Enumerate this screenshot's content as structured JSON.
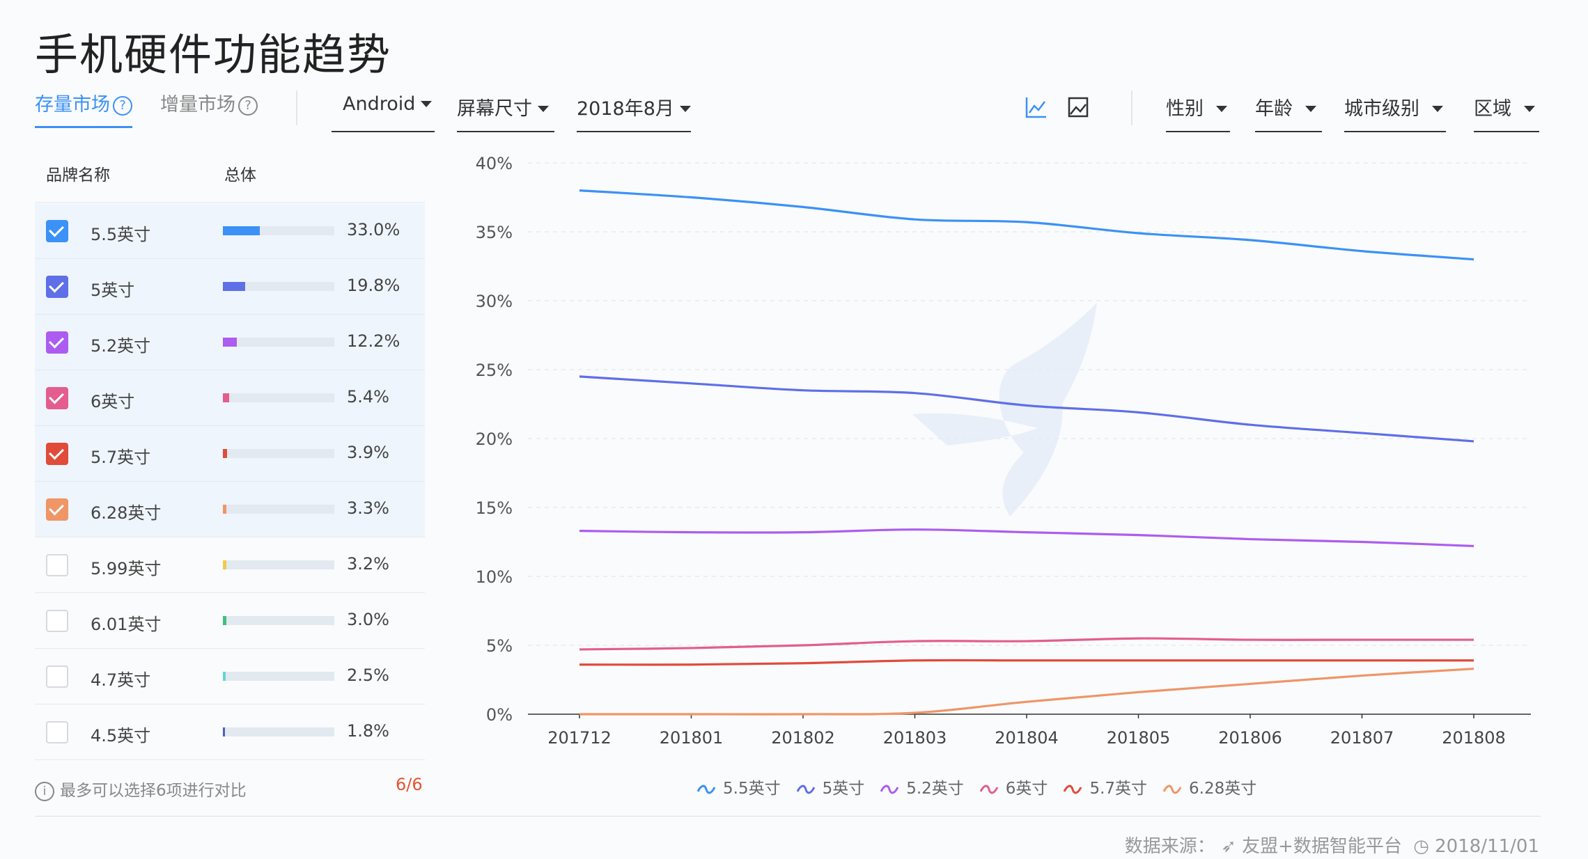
{
  "page": {
    "title": "手机硬件功能趋势"
  },
  "tabs": [
    {
      "label": "存量市场",
      "help": "?"
    },
    {
      "label": "增量市场",
      "help": "?"
    }
  ],
  "filters": {
    "os": "Android",
    "dimension": "屏幕尺寸",
    "month": "2018年8月",
    "gender": "性别",
    "age": "年龄",
    "city_level": "城市级别",
    "region": "区域"
  },
  "view_icons": [
    "line-chart-icon",
    "image-icon"
  ],
  "table": {
    "col_brand": "品牌名称",
    "col_total": "总体",
    "rows": [
      {
        "label": "5.5英寸",
        "value": "33.0%",
        "pct": 33.0,
        "color": "#3b91f6",
        "checked": true
      },
      {
        "label": "5英寸",
        "value": "19.8%",
        "pct": 19.8,
        "color": "#5e6fe8",
        "checked": true
      },
      {
        "label": "5.2英寸",
        "value": "12.2%",
        "pct": 12.2,
        "color": "#ac5cf0",
        "checked": true
      },
      {
        "label": "6英寸",
        "value": "5.4%",
        "pct": 5.4,
        "color": "#e35d8f",
        "checked": true
      },
      {
        "label": "5.7英寸",
        "value": "3.9%",
        "pct": 3.9,
        "color": "#e04b3a",
        "checked": true
      },
      {
        "label": "6.28英寸",
        "value": "3.3%",
        "pct": 3.3,
        "color": "#ef9566",
        "checked": true
      },
      {
        "label": "5.99英寸",
        "value": "3.2%",
        "pct": 3.2,
        "color": "#f2c94c",
        "checked": false
      },
      {
        "label": "6.01英寸",
        "value": "3.0%",
        "pct": 3.0,
        "color": "#3fbf7f",
        "checked": false
      },
      {
        "label": "4.7英寸",
        "value": "2.5%",
        "pct": 2.5,
        "color": "#5fd9d2",
        "checked": false
      },
      {
        "label": "4.5英寸",
        "value": "1.8%",
        "pct": 1.8,
        "color": "#4a5fc1",
        "checked": false
      }
    ]
  },
  "footer": {
    "note": "最多可以选择6项进行对比",
    "count": "6/6",
    "source_label": "数据来源：",
    "source_name": "友盟+数据智能平台",
    "date": "2018/11/01"
  },
  "chart_data": {
    "type": "line",
    "title": "",
    "x": [
      "201712",
      "201801",
      "201802",
      "201803",
      "201804",
      "201805",
      "201806",
      "201807",
      "201808"
    ],
    "ylim": [
      0,
      40
    ],
    "yticks": [
      "0%",
      "5%",
      "10%",
      "15%",
      "20%",
      "25%",
      "30%",
      "35%",
      "40%"
    ],
    "series": [
      {
        "name": "5.5英寸",
        "color": "#3b91f6",
        "values": [
          38.0,
          37.5,
          36.8,
          35.9,
          35.7,
          34.9,
          34.4,
          33.6,
          33.0
        ]
      },
      {
        "name": "5英寸",
        "color": "#5e6fe8",
        "values": [
          24.5,
          24.0,
          23.5,
          23.3,
          22.4,
          21.9,
          21.0,
          20.4,
          19.8
        ]
      },
      {
        "name": "5.2英寸",
        "color": "#ac5cf0",
        "values": [
          13.3,
          13.2,
          13.2,
          13.4,
          13.2,
          13.0,
          12.7,
          12.5,
          12.2
        ]
      },
      {
        "name": "6英寸",
        "color": "#e35d8f",
        "values": [
          4.7,
          4.8,
          5.0,
          5.3,
          5.3,
          5.5,
          5.4,
          5.4,
          5.4
        ]
      },
      {
        "name": "5.7英寸",
        "color": "#e04b3a",
        "values": [
          3.6,
          3.6,
          3.7,
          3.9,
          3.9,
          3.9,
          3.9,
          3.9,
          3.9
        ]
      },
      {
        "name": "6.28英寸",
        "color": "#ef9566",
        "values": [
          0.0,
          0.0,
          0.0,
          0.1,
          0.9,
          1.6,
          2.2,
          2.8,
          3.3
        ]
      }
    ]
  }
}
